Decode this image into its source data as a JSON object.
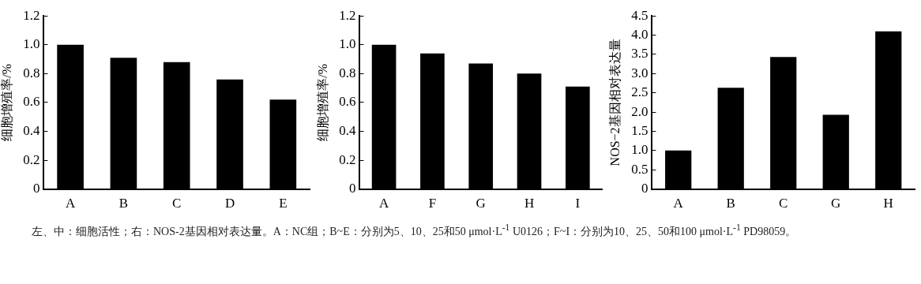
{
  "chart_data": [
    {
      "type": "bar",
      "ylabel": "细胞增殖率/%",
      "categories": [
        "A",
        "B",
        "C",
        "D",
        "E"
      ],
      "values": [
        1.0,
        0.91,
        0.88,
        0.76,
        0.62
      ],
      "color": "#000000",
      "ylim": [
        0,
        1.2
      ],
      "yticks": [
        0,
        0.2,
        0.4,
        0.6,
        0.8,
        {
          "value": 1,
          "label": "1.0"
        },
        1.2
      ],
      "grid": false,
      "legend": false,
      "annotations": [
        "左、中：细胞活性；右：NOS-2基因相对表达量。A：NC组；B~E：分别为5、10、25和50 μmol·L$^{-1}$ U0126；F~I：分别为10、25、50和100 μmol·L$^{-1}$ PD98059。"
      ]
    },
    {
      "type": "bar",
      "ylabel": "细胞增殖率/%",
      "categories": [
        "A",
        "F",
        "G",
        "H",
        "I"
      ],
      "values": [
        1.0,
        0.94,
        0.87,
        0.8,
        0.71
      ],
      "color": "#000000",
      "ylim": [
        0,
        1.2
      ],
      "yticks": [
        0,
        0.2,
        0.4,
        0.6,
        0.8,
        {
          "value": 1,
          "label": "1.0"
        },
        1.2
      ],
      "grid": false,
      "legend": false
    },
    {
      "type": "bar",
      "ylabel": "NOS−2基因相对表达量",
      "categories": [
        "A",
        "B",
        "C",
        "G",
        "H"
      ],
      "values": [
        1.0,
        2.63,
        3.43,
        1.93,
        4.1
      ],
      "color": "#000000",
      "ylim": [
        0,
        4.5
      ],
      "yticks": [
        0,
        0.5,
        {
          "value": 1,
          "label": "1.0"
        },
        1.5,
        {
          "value": 2,
          "label": "2.0"
        },
        2.5,
        {
          "value": 3,
          "label": "3.0"
        },
        3.5,
        {
          "value": 4,
          "label": "4.0"
        },
        4.5
      ],
      "grid": false,
      "legend": false
    }
  ]
}
